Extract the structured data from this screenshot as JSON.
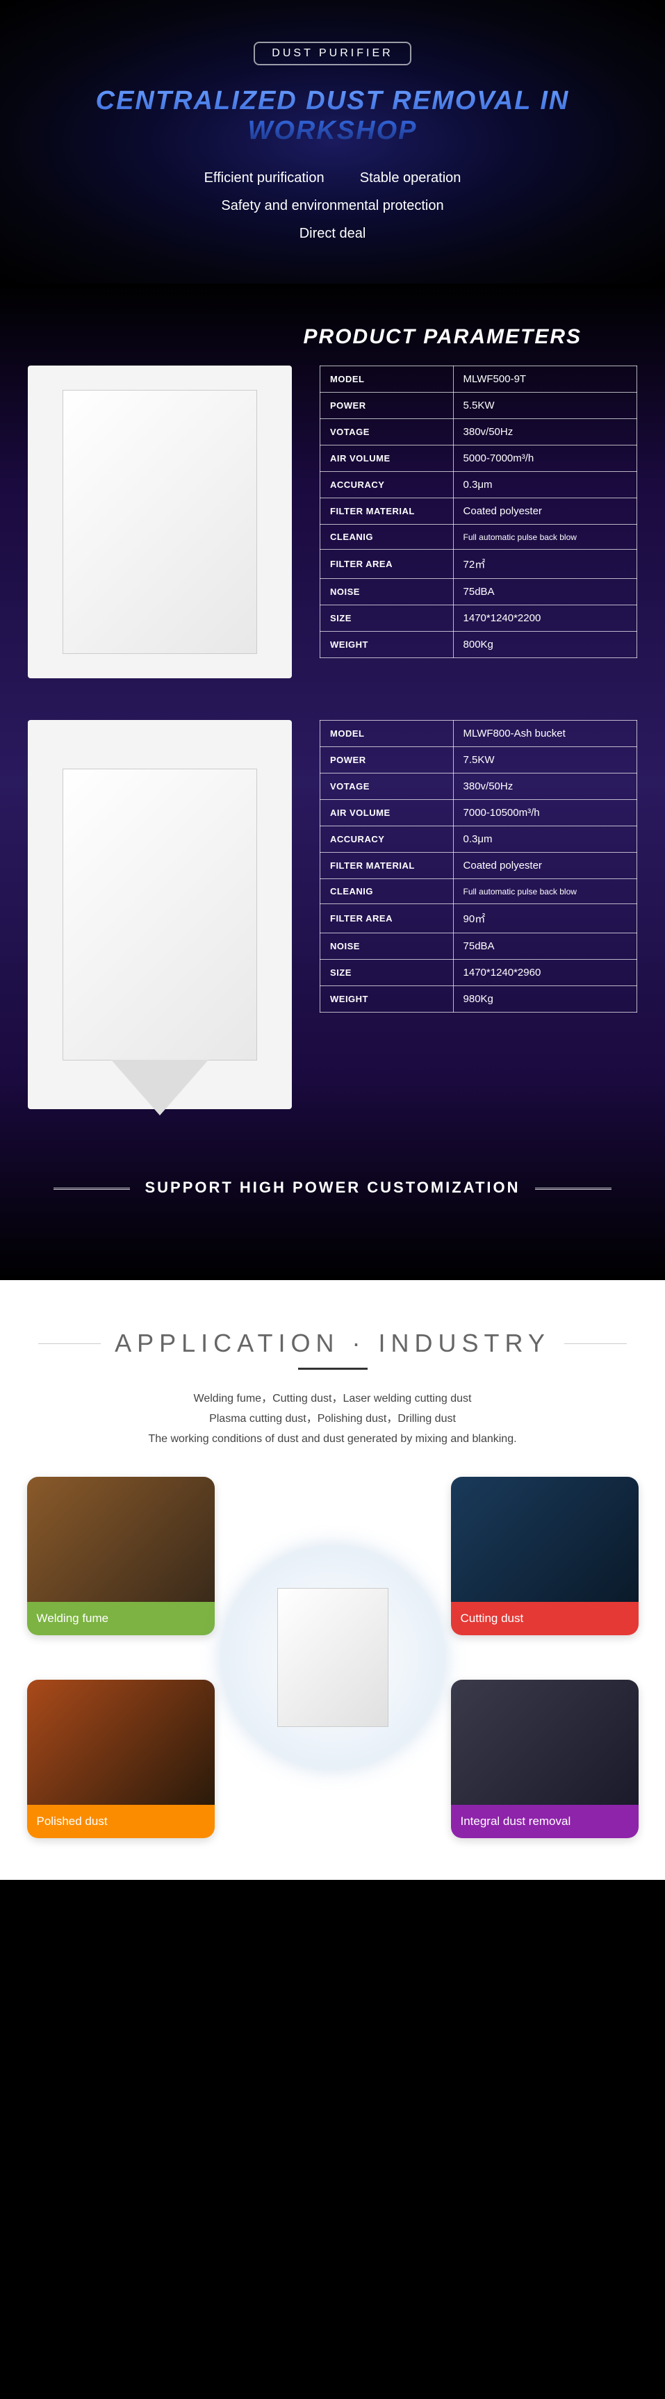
{
  "hero": {
    "badge": "DUST PURIFIER",
    "title": "CENTRALIZED DUST REMOVAL IN WORKSHOP",
    "features": {
      "f1": "Efficient purification",
      "f2": "Stable operation",
      "f3": "Safety and environmental protection",
      "f4": "Direct deal"
    }
  },
  "params": {
    "title": "PRODUCT PARAMETERS",
    "labels": {
      "model": "MODEL",
      "power": "POWER",
      "voltage": "VOTAGE",
      "air_volume": "AIR VOLUME",
      "accuracy": "ACCURACY",
      "filter_material": "FILTER MATERIAL",
      "cleaning": "CLEANIG",
      "filter_area": "FILTER AREA",
      "noise": "NOISE",
      "size": "SIZE",
      "weight": "WEIGHT"
    },
    "product1": {
      "model": "MLWF500-9T",
      "power": "5.5KW",
      "voltage": "380v/50Hz",
      "air_volume": "5000-7000m³/h",
      "accuracy": "0.3μm",
      "filter_material": "Coated polyester",
      "cleaning": "Full automatic pulse back blow",
      "filter_area": "72㎡",
      "noise": "75dBA",
      "size": "1470*1240*2200",
      "weight": "800Kg"
    },
    "product2": {
      "model": "MLWF800-Ash bucket",
      "power": "7.5KW",
      "voltage": "380v/50Hz",
      "air_volume": "7000-10500m³/h",
      "accuracy": "0.3μm",
      "filter_material": "Coated polyester",
      "cleaning": "Full automatic pulse back blow",
      "filter_area": "90㎡",
      "noise": "75dBA",
      "size": "1470*1240*2960",
      "weight": "980Kg"
    },
    "support": "SUPPORT HIGH POWER CUSTOMIZATION"
  },
  "app": {
    "title": "APPLICATION · INDUSTRY",
    "desc_l1": "Welding fume，Cutting dust，Laser welding cutting dust",
    "desc_l2": "Plasma cutting dust，Polishing dust，Drilling dust",
    "desc_l3": "The working conditions of dust and dust generated by mixing and blanking.",
    "industries": {
      "i1": "Welding fume",
      "i2": "Cutting dust",
      "i3": "Polished dust",
      "i4": "Integral dust removal"
    }
  },
  "colors": {
    "green": "#7cb342",
    "red": "#e53935",
    "orange": "#fb8c00",
    "purple": "#8e24aa"
  }
}
